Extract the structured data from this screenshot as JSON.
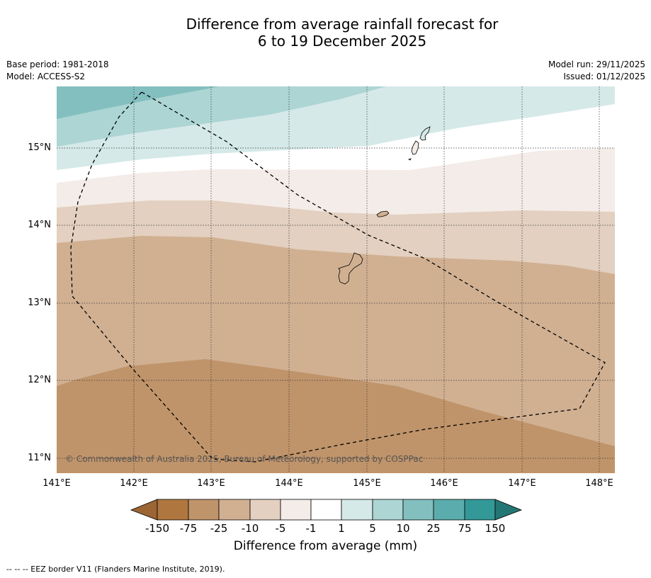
{
  "title": {
    "line1": "Difference from average rainfall forecast for",
    "line2": "6 to 19 December 2025"
  },
  "meta": {
    "base_period": "Base period: 1981-2018",
    "model": "Model: ACCESS-S2",
    "model_run": "Model run: 29/11/2025",
    "issued": "Issued: 01/12/2025"
  },
  "axes": {
    "x_ticks": [
      "141°E",
      "142°E",
      "143°E",
      "144°E",
      "145°E",
      "146°E",
      "147°E",
      "148°E"
    ],
    "y_ticks": [
      "15°N",
      "14°N",
      "13°N",
      "12°N",
      "11°N"
    ],
    "lon_range": [
      141.0,
      148.2
    ],
    "lat_range": [
      10.8,
      15.8
    ]
  },
  "copyright": "© Commonwealth of Australia 2025, Bureau of Meteorology, supported by COSPPac",
  "colorbar": {
    "title": "Difference from average (mm)",
    "labels": [
      "-150",
      "-75",
      "-25",
      "-10",
      "-5",
      "-1",
      "1",
      "5",
      "10",
      "25",
      "75",
      "150"
    ],
    "colors": {
      "lt_-150": "#9b6534",
      "-150_-75": "#af773f",
      "-75_-25": "#c0946a",
      "-25_-10": "#d1b092",
      "-10_-5": "#e3d0c0",
      "-5_-1": "#f4ece8",
      "-1_1": "#ffffff",
      "1_5": "#d5e9e8",
      "5_10": "#acd5d4",
      "10_25": "#83bfbf",
      "25_75": "#5aadac",
      "75_150": "#339998",
      "gt_150": "#237673"
    }
  },
  "footnote": "-- -- -- EEZ border V11 (Flanders Marine Institute, 2019)."
}
